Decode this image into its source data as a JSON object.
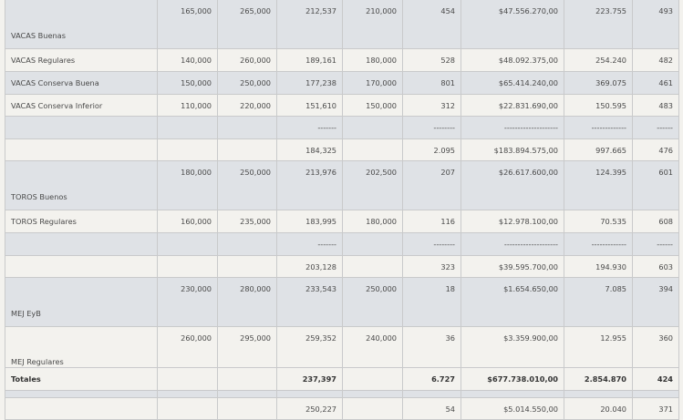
{
  "rows": [
    {
      "label": "VACAS Buenas",
      "c1": "165,000",
      "c2": "265,000",
      "c3": "212,537",
      "c4": "210,000",
      "c5": "454",
      "c6": "$47.556.270,00",
      "c7": "223.755",
      "c8": "493"
    },
    {
      "label": "VACAS Regulares",
      "c1": "140,000",
      "c2": "260,000",
      "c3": "189,161",
      "c4": "180,000",
      "c5": "528",
      "c6": "$48.092.375,00",
      "c7": "254.240",
      "c8": "482"
    },
    {
      "label": "VACAS Conserva Buena",
      "c1": "150,000",
      "c2": "250,000",
      "c3": "177,238",
      "c4": "170,000",
      "c5": "801",
      "c6": "$65.414.240,00",
      "c7": "369.075",
      "c8": "461"
    },
    {
      "label": "VACAS Conserva Inferior",
      "c1": "110,000",
      "c2": "220,000",
      "c3": "151,610",
      "c4": "150,000",
      "c5": "312",
      "c6": "$22.831.690,00",
      "c7": "150.595",
      "c8": "483"
    },
    {
      "label": "",
      "c1": "",
      "c2": "",
      "c3": "-------",
      "c4": "",
      "c5": "--------",
      "c6": "--------------------",
      "c7": "-------------",
      "c8": "------"
    },
    {
      "label": "",
      "c1": "",
      "c2": "",
      "c3": "184,325",
      "c4": "",
      "c5": "2.095",
      "c6": "$183.894.575,00",
      "c7": "997.665",
      "c8": "476"
    },
    {
      "label": "TOROS Buenos",
      "c1": "180,000",
      "c2": "250,000",
      "c3": "213,976",
      "c4": "202,500",
      "c5": "207",
      "c6": "$26.617.600,00",
      "c7": "124.395",
      "c8": "601"
    },
    {
      "label": "TOROS Regulares",
      "c1": "160,000",
      "c2": "235,000",
      "c3": "183,995",
      "c4": "180,000",
      "c5": "116",
      "c6": "$12.978.100,00",
      "c7": "70.535",
      "c8": "608"
    },
    {
      "label": "",
      "c1": "",
      "c2": "",
      "c3": "-------",
      "c4": "",
      "c5": "--------",
      "c6": "--------------------",
      "c7": "-------------",
      "c8": "------"
    },
    {
      "label": "",
      "c1": "",
      "c2": "",
      "c3": "203,128",
      "c4": "",
      "c5": "323",
      "c6": "$39.595.700,00",
      "c7": "194.930",
      "c8": "603"
    },
    {
      "label": "MEJ EyB",
      "c1": "230,000",
      "c2": "280,000",
      "c3": "233,543",
      "c4": "250,000",
      "c5": "18",
      "c6": "$1.654.650,00",
      "c7": "7.085",
      "c8": "394"
    },
    {
      "label": "MEJ Regulares",
      "c1": "260,000",
      "c2": "295,000",
      "c3": "259,352",
      "c4": "240,000",
      "c5": "36",
      "c6": "$3.359.900,00",
      "c7": "12.955",
      "c8": "360"
    },
    {
      "label": "",
      "c1": "",
      "c2": "",
      "c3": "-------",
      "c4": "",
      "c5": "--------",
      "c6": "--------------------",
      "c7": "-------------",
      "c8": "------"
    },
    {
      "label": "",
      "c1": "",
      "c2": "",
      "c3": "250,227",
      "c4": "",
      "c5": "54",
      "c6": "$5.014.550,00",
      "c7": "20.040",
      "c8": "371"
    }
  ],
  "totals": {
    "label": "Totales",
    "c1": "",
    "c2": "",
    "c3": "237,397",
    "c4": "",
    "c5": "6.727",
    "c6": "$677.738.010,00",
    "c7": "2.854.870",
    "c8": "424"
  }
}
